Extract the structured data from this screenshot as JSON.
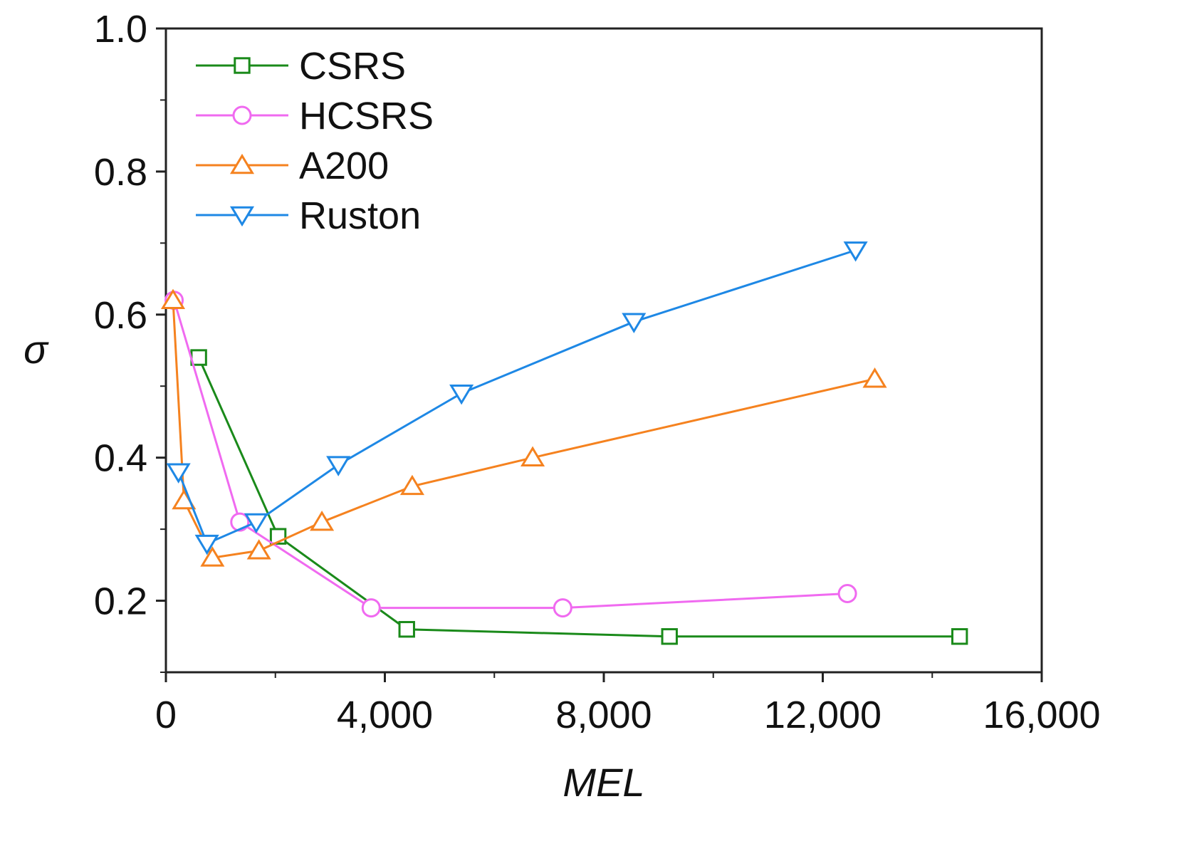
{
  "chart_data": {
    "type": "line",
    "title": "",
    "xlabel": "MEL",
    "ylabel": "σ",
    "xlim": [
      0,
      16000
    ],
    "ylim": [
      0.1,
      1.0
    ],
    "x_ticks": [
      0,
      4000,
      8000,
      12000,
      16000
    ],
    "x_tick_labels": [
      "0",
      "4,000",
      "8,000",
      "12,000",
      "16,000"
    ],
    "y_ticks": [
      0.2,
      0.4,
      0.6,
      0.8,
      1.0
    ],
    "y_tick_labels": [
      "0.2",
      "0.4",
      "0.6",
      "0.8",
      "1.0"
    ],
    "grid": false,
    "legend_position": "top-left",
    "series": [
      {
        "name": "CSRS",
        "color": "#1a8a1a",
        "marker": "square",
        "x": [
          600,
          2050,
          4400,
          9200,
          14500
        ],
        "y": [
          0.54,
          0.29,
          0.16,
          0.15,
          0.15
        ]
      },
      {
        "name": "HCSRS",
        "color": "#f06af0",
        "marker": "circle",
        "x": [
          150,
          1350,
          3750,
          7250,
          12450
        ],
        "y": [
          0.62,
          0.31,
          0.19,
          0.19,
          0.21
        ]
      },
      {
        "name": "A200",
        "color": "#f5821f",
        "marker": "triangle-up",
        "x": [
          130,
          330,
          850,
          1700,
          2850,
          4500,
          6700,
          12950
        ],
        "y": [
          0.62,
          0.34,
          0.26,
          0.27,
          0.31,
          0.36,
          0.4,
          0.51
        ]
      },
      {
        "name": "Ruston",
        "color": "#1e88e5",
        "marker": "triangle-down",
        "x": [
          230,
          750,
          1650,
          3150,
          5400,
          8550,
          12600
        ],
        "y": [
          0.38,
          0.28,
          0.31,
          0.39,
          0.49,
          0.59,
          0.69
        ]
      }
    ]
  }
}
